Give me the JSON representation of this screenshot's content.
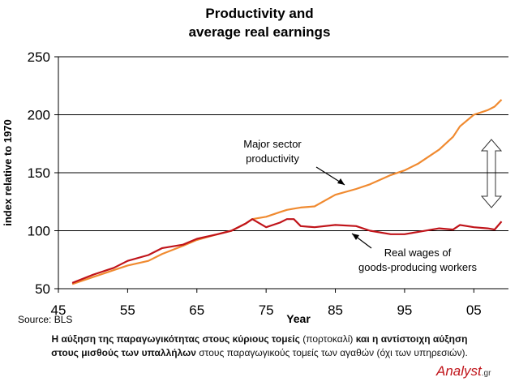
{
  "chart_data": {
    "type": "line",
    "title": [
      "Productivity and",
      "average real earnings"
    ],
    "y_label": "index relative to 1970",
    "x_label": "Year",
    "source": "Source: BLS",
    "x": [
      47,
      50,
      53,
      55,
      58,
      60,
      63,
      65,
      68,
      70,
      72,
      73,
      75,
      77,
      78,
      79,
      80,
      82,
      85,
      88,
      90,
      93,
      95,
      97,
      100,
      102,
      103,
      105,
      107,
      108,
      109
    ],
    "series": [
      {
        "name": "Major sector productivity",
        "color": "#f08a30",
        "values": [
          54,
          60,
          66,
          70,
          74,
          80,
          87,
          92,
          97,
          100,
          106,
          110,
          112,
          116,
          118,
          119,
          120,
          121,
          131,
          136,
          140,
          148,
          152,
          158,
          170,
          181,
          190,
          200,
          204,
          207,
          213
        ]
      },
      {
        "name": "Real wages of goods-producing workers",
        "color": "#c0141a",
        "values": [
          55,
          62,
          68,
          74,
          79,
          85,
          88,
          93,
          97,
          100,
          106,
          110,
          103,
          107,
          110,
          110,
          104,
          103,
          105,
          104,
          100,
          97,
          97,
          99,
          102,
          101,
          105,
          103,
          102,
          101,
          108
        ]
      }
    ],
    "annotations": [
      {
        "lines": [
          "Major sector",
          "productivity"
        ]
      },
      {
        "lines": [
          "Real wages of",
          "goods-producing workers"
        ]
      }
    ],
    "xlim": [
      45,
      110
    ],
    "xticks": [
      45,
      55,
      65,
      75,
      85,
      95,
      {
        "value": 105,
        "label": "05"
      }
    ],
    "ylim": [
      50,
      250
    ],
    "yticks": [
      50,
      100,
      150,
      200,
      250
    ],
    "grid": true,
    "caption": [
      {
        "text": "Η αύξηση της παραγωγικότητας στους κύριους τομείς",
        "bold": true
      },
      {
        "text": "(πορτοκαλί)",
        "bold": false
      },
      {
        "text": "και η αντίστοιχη αύξηση στους μισθούς των υπαλλήλων",
        "bold": true
      },
      {
        "text": "στους παραγωγικούς τομείς των αγαθών (όχι των υπηρεσιών).",
        "bold": false
      }
    ],
    "logo": {
      "name": "Analyst",
      "suffix": ".gr"
    }
  }
}
